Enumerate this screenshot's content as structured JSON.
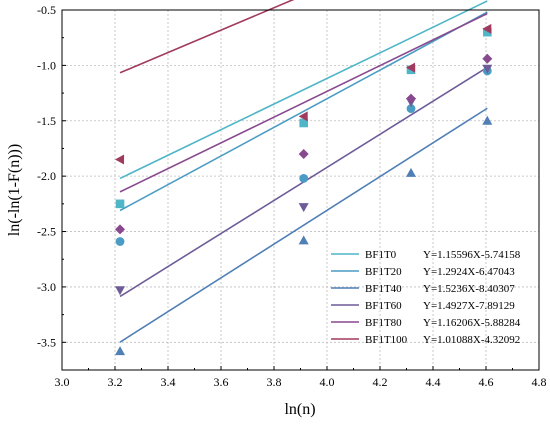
{
  "chart_data": {
    "type": "scatter",
    "xlabel": "ln(n)",
    "ylabel": "ln(-ln(1-F(n)))",
    "xlim": [
      3.0,
      4.8
    ],
    "ylim": [
      -3.75,
      -0.5
    ],
    "xticks": [
      3.0,
      3.2,
      3.4,
      3.6,
      3.8,
      4.0,
      4.2,
      4.4,
      4.6,
      4.8
    ],
    "yticks": [
      -3.5,
      -3.0,
      -2.5,
      -2.0,
      -1.5,
      -1.0,
      -0.5
    ],
    "xtick_labels": [
      "3.0",
      "3.2",
      "3.4",
      "3.6",
      "3.8",
      "4.0",
      "4.2",
      "4.4",
      "4.6",
      "4.8"
    ],
    "ytick_labels": [
      "-3.5",
      "-3.0",
      "-2.5",
      "-2.0",
      "-1.5",
      "-1.0",
      "-0.5"
    ],
    "grid": true,
    "legend_position": "bottom-right",
    "series": [
      {
        "name": "BF1T0",
        "equation": "Y=1.15596X-5.74158",
        "slope": 1.15596,
        "intercept": -5.74158,
        "marker": "square",
        "color": "#4fb6c8",
        "x": [
          3.219,
          3.912,
          4.317,
          4.605
        ],
        "y": [
          -2.25,
          -1.52,
          -1.04,
          -0.7
        ]
      },
      {
        "name": "BF1T20",
        "equation": "Y=1.2924X-6.47043",
        "slope": 1.2924,
        "intercept": -6.47043,
        "marker": "circle",
        "color": "#4a9cc4",
        "x": [
          3.219,
          3.912,
          4.317,
          4.605
        ],
        "y": [
          -2.59,
          -2.02,
          -1.39,
          -1.05
        ]
      },
      {
        "name": "BF1T40",
        "equation": "Y=1.5236X-8.40307",
        "slope": 1.5236,
        "intercept": -8.40307,
        "marker": "triangle-up",
        "color": "#4f7fb5",
        "x": [
          3.219,
          3.912,
          4.317,
          4.605
        ],
        "y": [
          -3.58,
          -2.58,
          -1.97,
          -1.5
        ]
      },
      {
        "name": "BF1T60",
        "equation": "Y=1.4927X-7.89129",
        "slope": 1.4927,
        "intercept": -7.89129,
        "marker": "triangle-down",
        "color": "#6e5c99",
        "x": [
          3.219,
          3.912,
          4.317,
          4.605
        ],
        "y": [
          -3.03,
          -2.28,
          -1.33,
          -1.03
        ]
      },
      {
        "name": "BF1T80",
        "equation": "Y=1.16206X-5.88284",
        "slope": 1.16206,
        "intercept": -5.88284,
        "marker": "diamond",
        "color": "#88498f",
        "x": [
          3.219,
          3.912,
          4.317,
          4.605
        ],
        "y": [
          -2.48,
          -1.8,
          -1.3,
          -0.94
        ]
      },
      {
        "name": "BF1T100",
        "equation": "Y=1.01088X-4.32092",
        "slope": 1.01088,
        "intercept": -4.32092,
        "marker": "triangle-left",
        "color": "#a03a5e",
        "x": [
          3.219,
          3.912,
          4.317,
          4.605
        ],
        "y": [
          -1.85,
          -1.46,
          -1.02,
          -0.67
        ]
      }
    ]
  }
}
